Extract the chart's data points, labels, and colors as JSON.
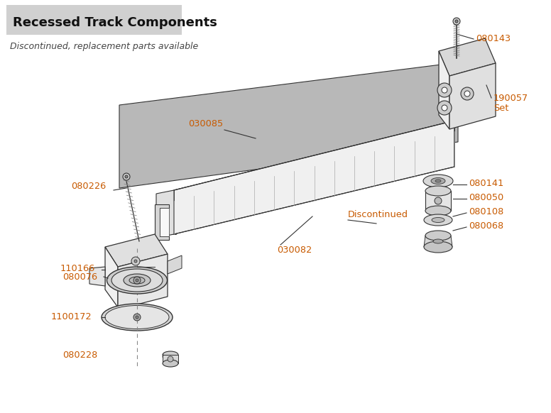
{
  "title": "Recessed Track Components",
  "subtitle": "Discontinued, replacement parts available",
  "title_bg": "#d0d0d0",
  "bg_color": "#ffffff",
  "label_color": "#c85a00",
  "line_color": "#333333",
  "part_color_dark": "#999999",
  "part_color_mid": "#cccccc",
  "part_color_light": "#eeeeee",
  "part_color_plate": "#b0b0b0"
}
